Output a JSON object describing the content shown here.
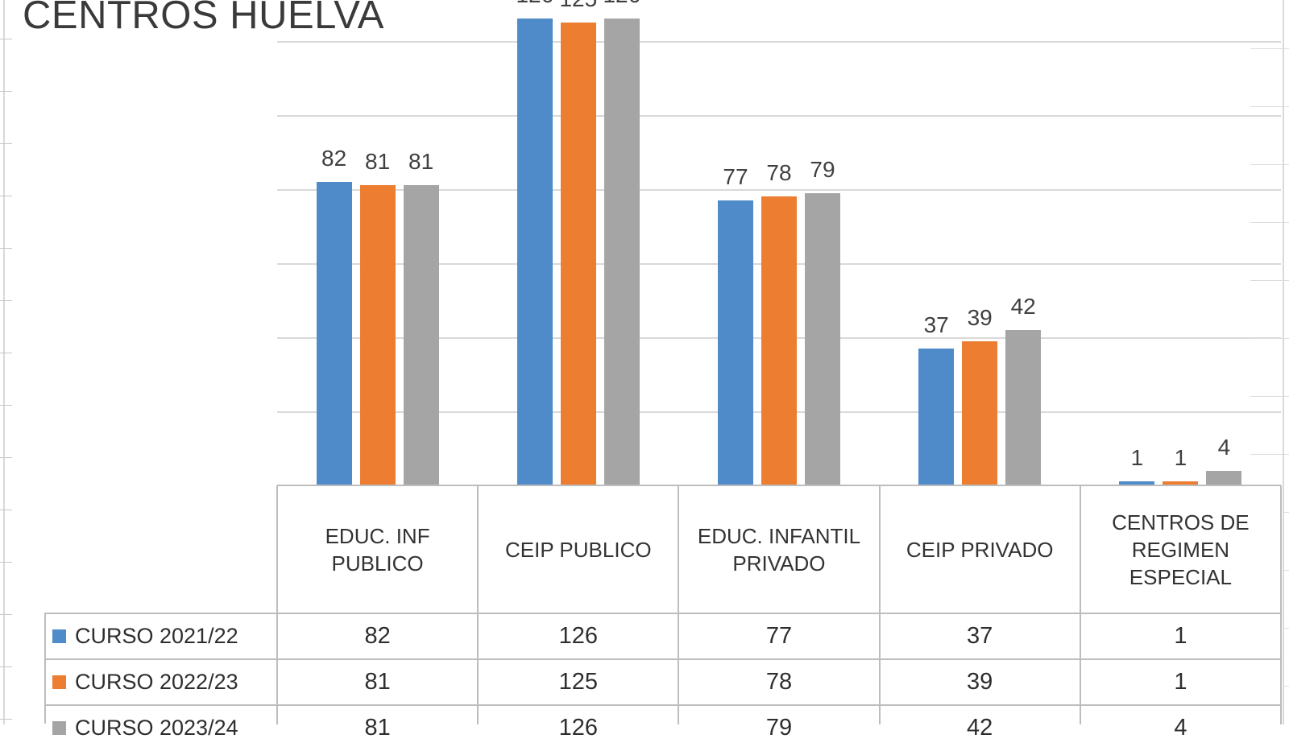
{
  "chart_data": {
    "type": "bar",
    "title": "CENTROS HUELVA",
    "categories": [
      "EDUC. INF PUBLICO",
      "CEIP PUBLICO",
      "EDUC. INFANTIL PRIVADO",
      "CEIP PRIVADO",
      "CENTROS DE REGIMEN ESPECIAL"
    ],
    "series": [
      {
        "name": "CURSO 2021/22",
        "color": "#4e8bc8",
        "values": [
          82,
          126,
          77,
          37,
          1
        ]
      },
      {
        "name": "CURSO 2022/23",
        "color": "#ed7d31",
        "values": [
          81,
          125,
          78,
          39,
          1
        ]
      },
      {
        "name": "CURSO 2023/24",
        "color": "#a5a5a5",
        "values": [
          81,
          126,
          79,
          42,
          4
        ]
      }
    ],
    "ylim": [
      0,
      140
    ],
    "gridline_step": 20,
    "grid": true,
    "data_labels": true,
    "axis_tick_labels_visible": false,
    "legend_position": "data-table-left-column"
  }
}
